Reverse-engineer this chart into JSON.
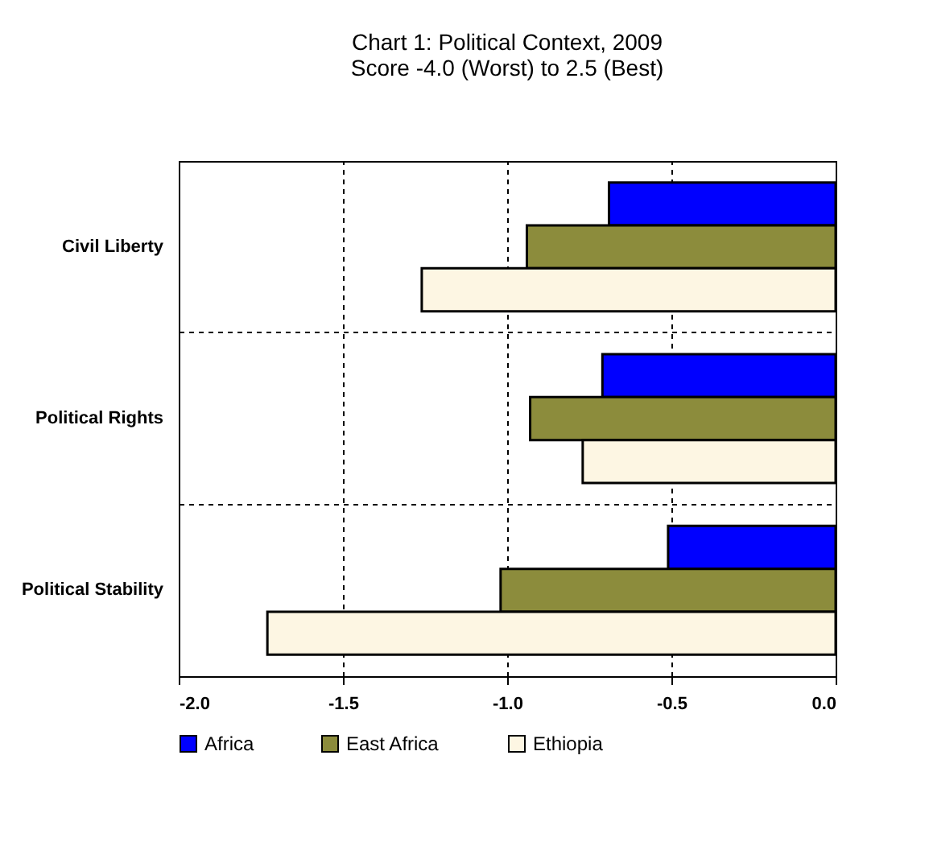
{
  "chart_data": {
    "type": "bar",
    "orientation": "horizontal",
    "title": "Chart 1:  Political  Context, 2009",
    "subtitle": "Score -4.0 (Worst) to 2.5 (Best)",
    "categories": [
      "Civil Liberty",
      "Political Rights",
      "Political Stability"
    ],
    "series": [
      {
        "name": "Africa",
        "color": "#0000ff",
        "values": [
          -0.69,
          -0.71,
          -0.51
        ]
      },
      {
        "name": "East Africa",
        "color": "#8c8c3c",
        "values": [
          -0.94,
          -0.93,
          -1.02
        ]
      },
      {
        "name": "Ethiopia",
        "color": "#fdf6e3",
        "values": [
          -1.26,
          -0.77,
          -1.73
        ]
      }
    ],
    "xlim": [
      -2.0,
      0.0
    ],
    "xticks": [
      {
        "value": -2,
        "label": "-2.0"
      },
      {
        "value": -1.5,
        "label": "-1.5"
      },
      {
        "value": -1,
        "label": "-1.0"
      },
      {
        "value": -0.5,
        "label": "-0.5"
      },
      {
        "value": 0,
        "label": "0.0"
      }
    ],
    "grid": true,
    "legend": "bottom"
  }
}
